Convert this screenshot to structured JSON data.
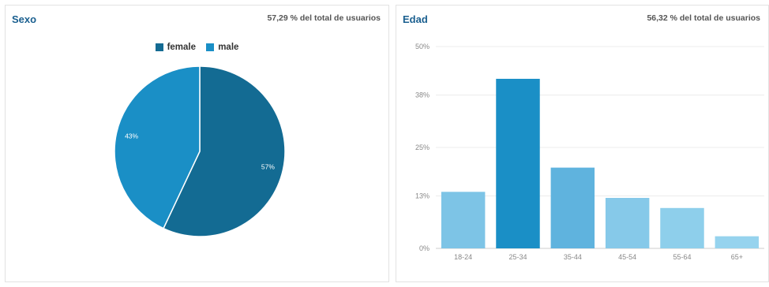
{
  "sexo": {
    "title": "Sexo",
    "subtitle": "57,29 % del total de usuarios",
    "legend": [
      {
        "label": "female",
        "color": "#136b93"
      },
      {
        "label": "male",
        "color": "#1a8fc6"
      }
    ]
  },
  "edad": {
    "title": "Edad",
    "subtitle": "56,32 % del total de usuarios"
  },
  "chart_data": [
    {
      "type": "pie",
      "title": "Sexo",
      "labels": [
        "female",
        "male"
      ],
      "values": [
        57,
        43
      ],
      "value_labels": [
        "57%",
        "43%"
      ],
      "colors": [
        "#136b93",
        "#1a8fc6"
      ],
      "legend": "top-center"
    },
    {
      "type": "bar",
      "title": "Edad",
      "categories": [
        "18-24",
        "25-34",
        "35-44",
        "45-54",
        "55-64",
        "65+"
      ],
      "values": [
        14,
        42,
        20,
        12.5,
        10,
        3
      ],
      "colors": [
        "#7dc4e6",
        "#1a8fc6",
        "#5fb3de",
        "#86c9e9",
        "#8ecfeb",
        "#96d3ee"
      ],
      "yticks": [
        0,
        13,
        25,
        38,
        50
      ],
      "ytick_labels": [
        "0%",
        "13%",
        "25%",
        "38%",
        "50%"
      ],
      "ylim": [
        0,
        50
      ],
      "grid": true
    }
  ]
}
